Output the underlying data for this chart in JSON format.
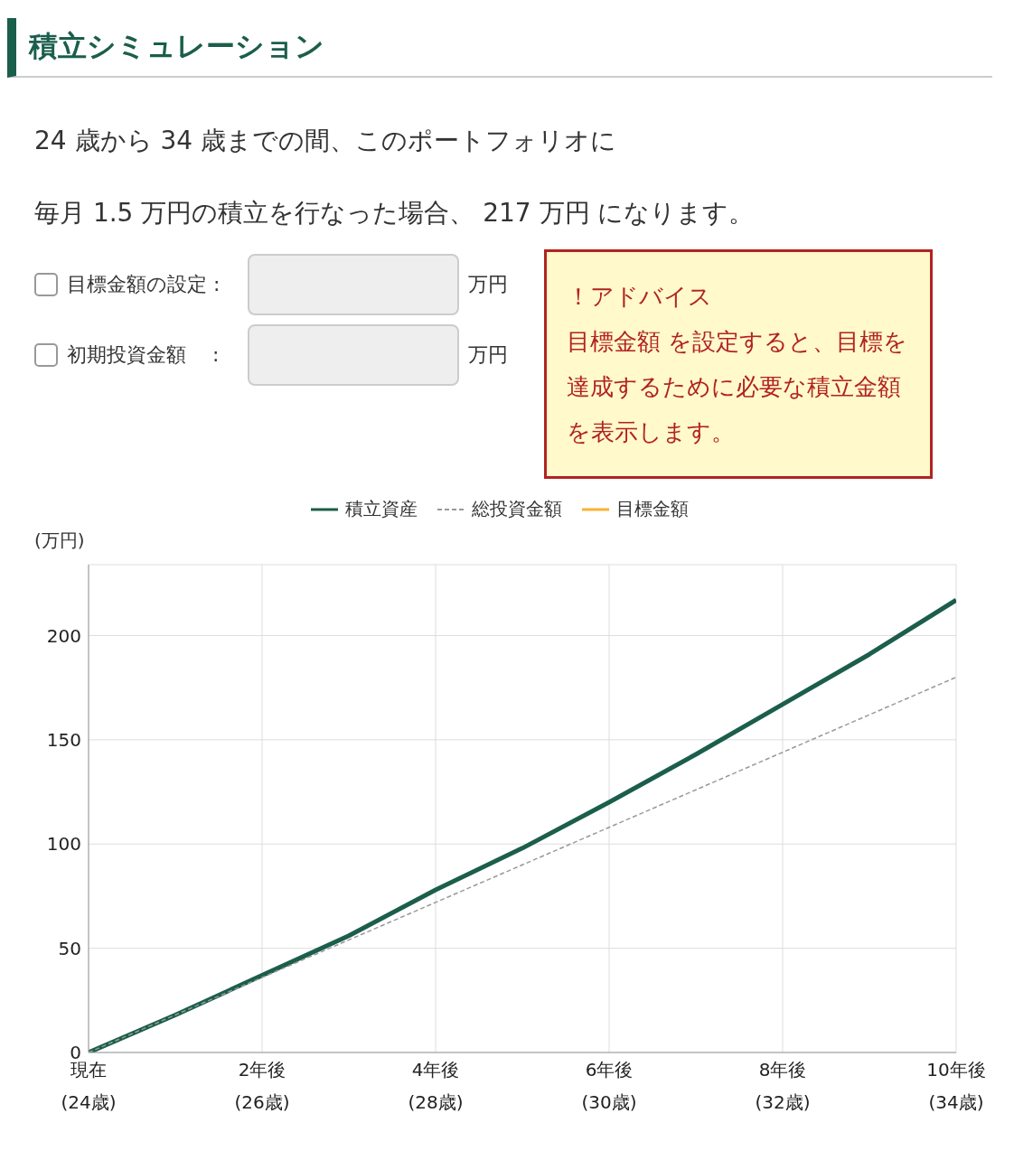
{
  "chart_data": {
    "type": "line",
    "title": "積立シミュレーション",
    "annotations": [
      "24 歳から 34 歳までの間、このポートフォリオに",
      "毎月 1.5 万円の積立を行なった場合、 217 万円 になります。",
      "目標金額の設定 :",
      "万円",
      "初期投資金額　 :",
      "万円",
      "！アドバイス",
      "目標金額 を設定すると、目標を達成するために必要な積立金額を表示します。"
    ],
    "ylabel": "(万円)",
    "categories": [
      "現在\n(24歳)",
      null,
      "2年後\n(26歳)",
      null,
      "4年後\n(28歳)",
      null,
      "6年後\n(30歳)",
      null,
      "8年後\n(32歳)",
      null,
      "10年後\n(34歳)"
    ],
    "ylim": [
      0,
      234
    ],
    "yticks": [
      0,
      50,
      100,
      150,
      200
    ],
    "series": [
      {
        "name": "積立資産",
        "color": "#1b5e4b",
        "values": [
          0,
          18,
          37,
          56,
          78,
          98,
          120,
          143,
          167,
          191,
          217
        ]
      },
      {
        "name": "総投資金額",
        "color": "#999999",
        "line_style": "dashed",
        "values": [
          0,
          18,
          36,
          54,
          72,
          90,
          108,
          126,
          144,
          162,
          180
        ]
      },
      {
        "name": "目標金額",
        "color": "#f9b233",
        "values": [
          null,
          null,
          null,
          null,
          null,
          null,
          null,
          null,
          null,
          null,
          null
        ]
      }
    ],
    "grid": true,
    "legend": "top",
    "marker": "none"
  }
}
